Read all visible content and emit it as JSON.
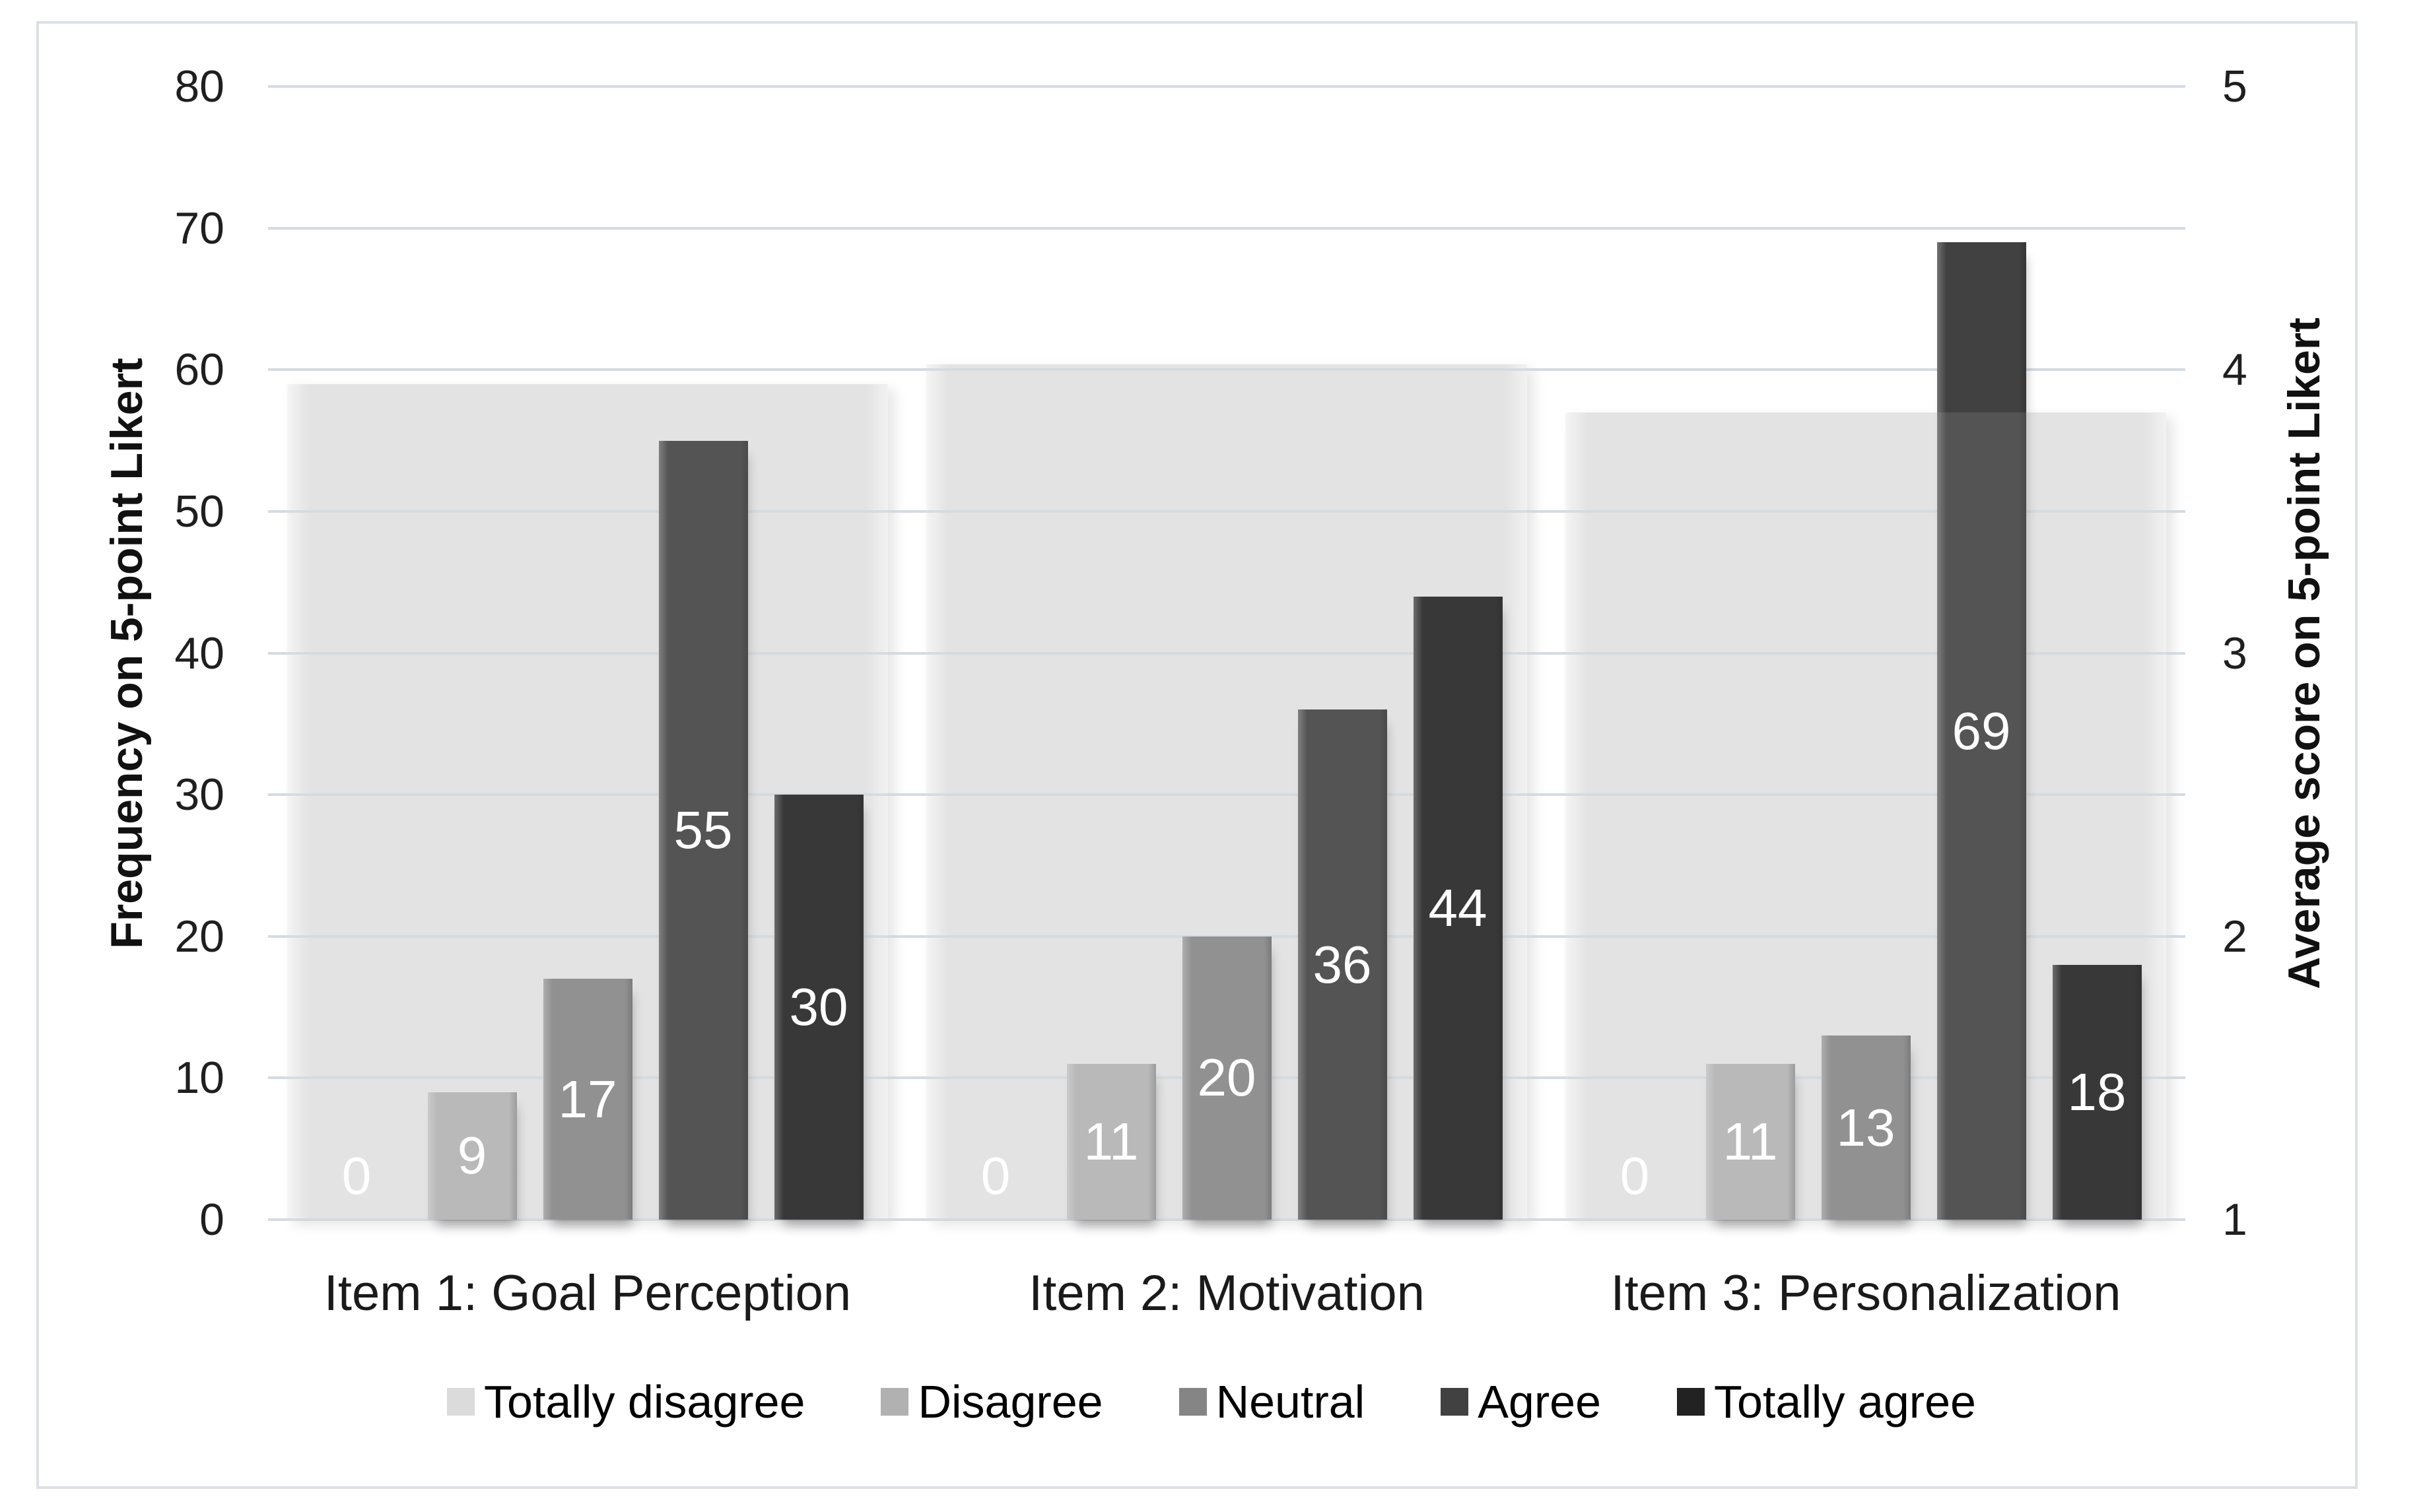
{
  "figure": {
    "background": "#ffffff",
    "border_color": "#dce1e6"
  },
  "axes": {
    "left": {
      "title": "Frequency on 5-point Likert",
      "ticks": [
        0,
        10,
        20,
        30,
        40,
        50,
        60,
        70,
        80
      ],
      "range": [
        0,
        80
      ]
    },
    "right": {
      "title": "Average score on 5-point Likert",
      "ticks": [
        1,
        2,
        3,
        4,
        5
      ],
      "range": [
        1,
        5
      ]
    }
  },
  "legend": {
    "position": "bottom",
    "items": [
      {
        "label": "Totally disagree",
        "color": "#dbdbdb"
      },
      {
        "label": "Disagree",
        "color": "#b1b1b1"
      },
      {
        "label": "Neutral",
        "color": "#858585"
      },
      {
        "label": "Agree",
        "color": "#414141"
      },
      {
        "label": "Totally agree",
        "color": "#222222"
      }
    ]
  },
  "chart_data": {
    "type": "bar",
    "title": "",
    "xlabel": "",
    "ylabel_left": "Frequency on 5-point Likert",
    "ylabel_right": "Average score on 5-point Likert",
    "ylim_left": [
      0,
      80
    ],
    "ylim_right": [
      1,
      5
    ],
    "grid": true,
    "gridline_color": "#ccd5dd",
    "legend_position": "bottom",
    "data_label_style": {
      "color": "#ffffff",
      "position": "inside-center"
    },
    "categories": [
      "Item 1: Goal Perception",
      "Item 2: Motivation",
      "Item 3: Personalization"
    ],
    "series": [
      {
        "name": "Totally disagree",
        "color": "#dbdbdb",
        "values": [
          0,
          0,
          0
        ]
      },
      {
        "name": "Disagree",
        "color": "#b1b1b1",
        "values": [
          9,
          11,
          11
        ]
      },
      {
        "name": "Neutral",
        "color": "#858585",
        "values": [
          17,
          20,
          13
        ]
      },
      {
        "name": "Agree",
        "color": "#414141",
        "values": [
          55,
          36,
          69
        ]
      },
      {
        "name": "Totally agree",
        "color": "#222222",
        "values": [
          30,
          44,
          18
        ]
      }
    ],
    "secondary_series": {
      "name": "Average score (wide background bar, right axis)",
      "axis": "right",
      "color": "#e0e0e0",
      "values": [
        3.95,
        4.02,
        3.85
      ]
    }
  }
}
